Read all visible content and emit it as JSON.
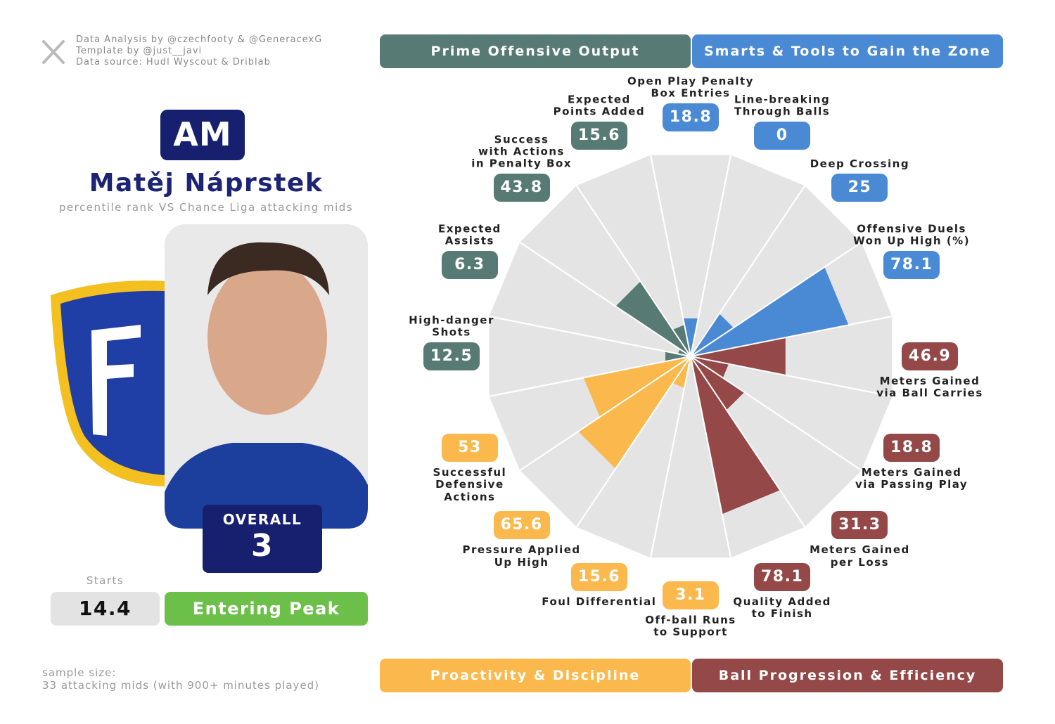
{
  "header": {
    "credits": [
      "Data Analysis by @czechfooty & @GeneracexG",
      "Template by @just__javi",
      "Data source: Hudl Wyscout & Driblab"
    ]
  },
  "player": {
    "position": "AM",
    "name": "Matěj Náprstek",
    "subtitle": "percentile rank VS Chance Liga attacking mids",
    "overall_label": "OVERALL",
    "overall": 3,
    "starts_label": "Starts",
    "starts": 14.4,
    "stage": "Entering Peak"
  },
  "footer": {
    "sample_size": [
      "sample size:",
      "33 attacking mids (with 900+ minutes played)"
    ]
  },
  "chart_data": {
    "type": "pizza",
    "ylim": [
      0,
      100
    ],
    "series": [
      {
        "name": "Prime Offensive Output",
        "color": "#587a74",
        "categories": [
          "High-danger\nShots",
          "Expected\nAssists",
          "Success\nwith Actions\nin Penalty Box",
          "Expected\nPoints Added"
        ],
        "values": [
          12.5,
          6.3,
          43.8,
          15.6
        ]
      },
      {
        "name": "Smarts & Tools to Gain the Zone",
        "color": "#4a8ad4",
        "categories": [
          "Open Play Penalty\nBox Entries",
          "Line-breaking\nThrough Balls",
          "Deep Crossing",
          "Offensive Duels\nWon Up High (%)"
        ],
        "values": [
          18.8,
          0,
          25,
          78.1
        ]
      },
      {
        "name": "Ball Progression & Efficiency",
        "color": "#944848",
        "categories": [
          "Meters Gained\nvia Ball Carries",
          "Meters Gained\nvia Passing Play",
          "Meters Gained\nper Loss",
          "Quality Added\nto Finish"
        ],
        "values": [
          46.9,
          18.8,
          31.3,
          78.1
        ]
      },
      {
        "name": "Proactivity & Discipline",
        "color": "#fbb84c",
        "categories": [
          "Off-ball Runs\nto Support",
          "Foul Differential",
          "Pressure Applied\nUp High",
          "Successful\nDefensive\nActions"
        ],
        "values": [
          3.1,
          15.6,
          65.6,
          53
        ]
      }
    ]
  }
}
